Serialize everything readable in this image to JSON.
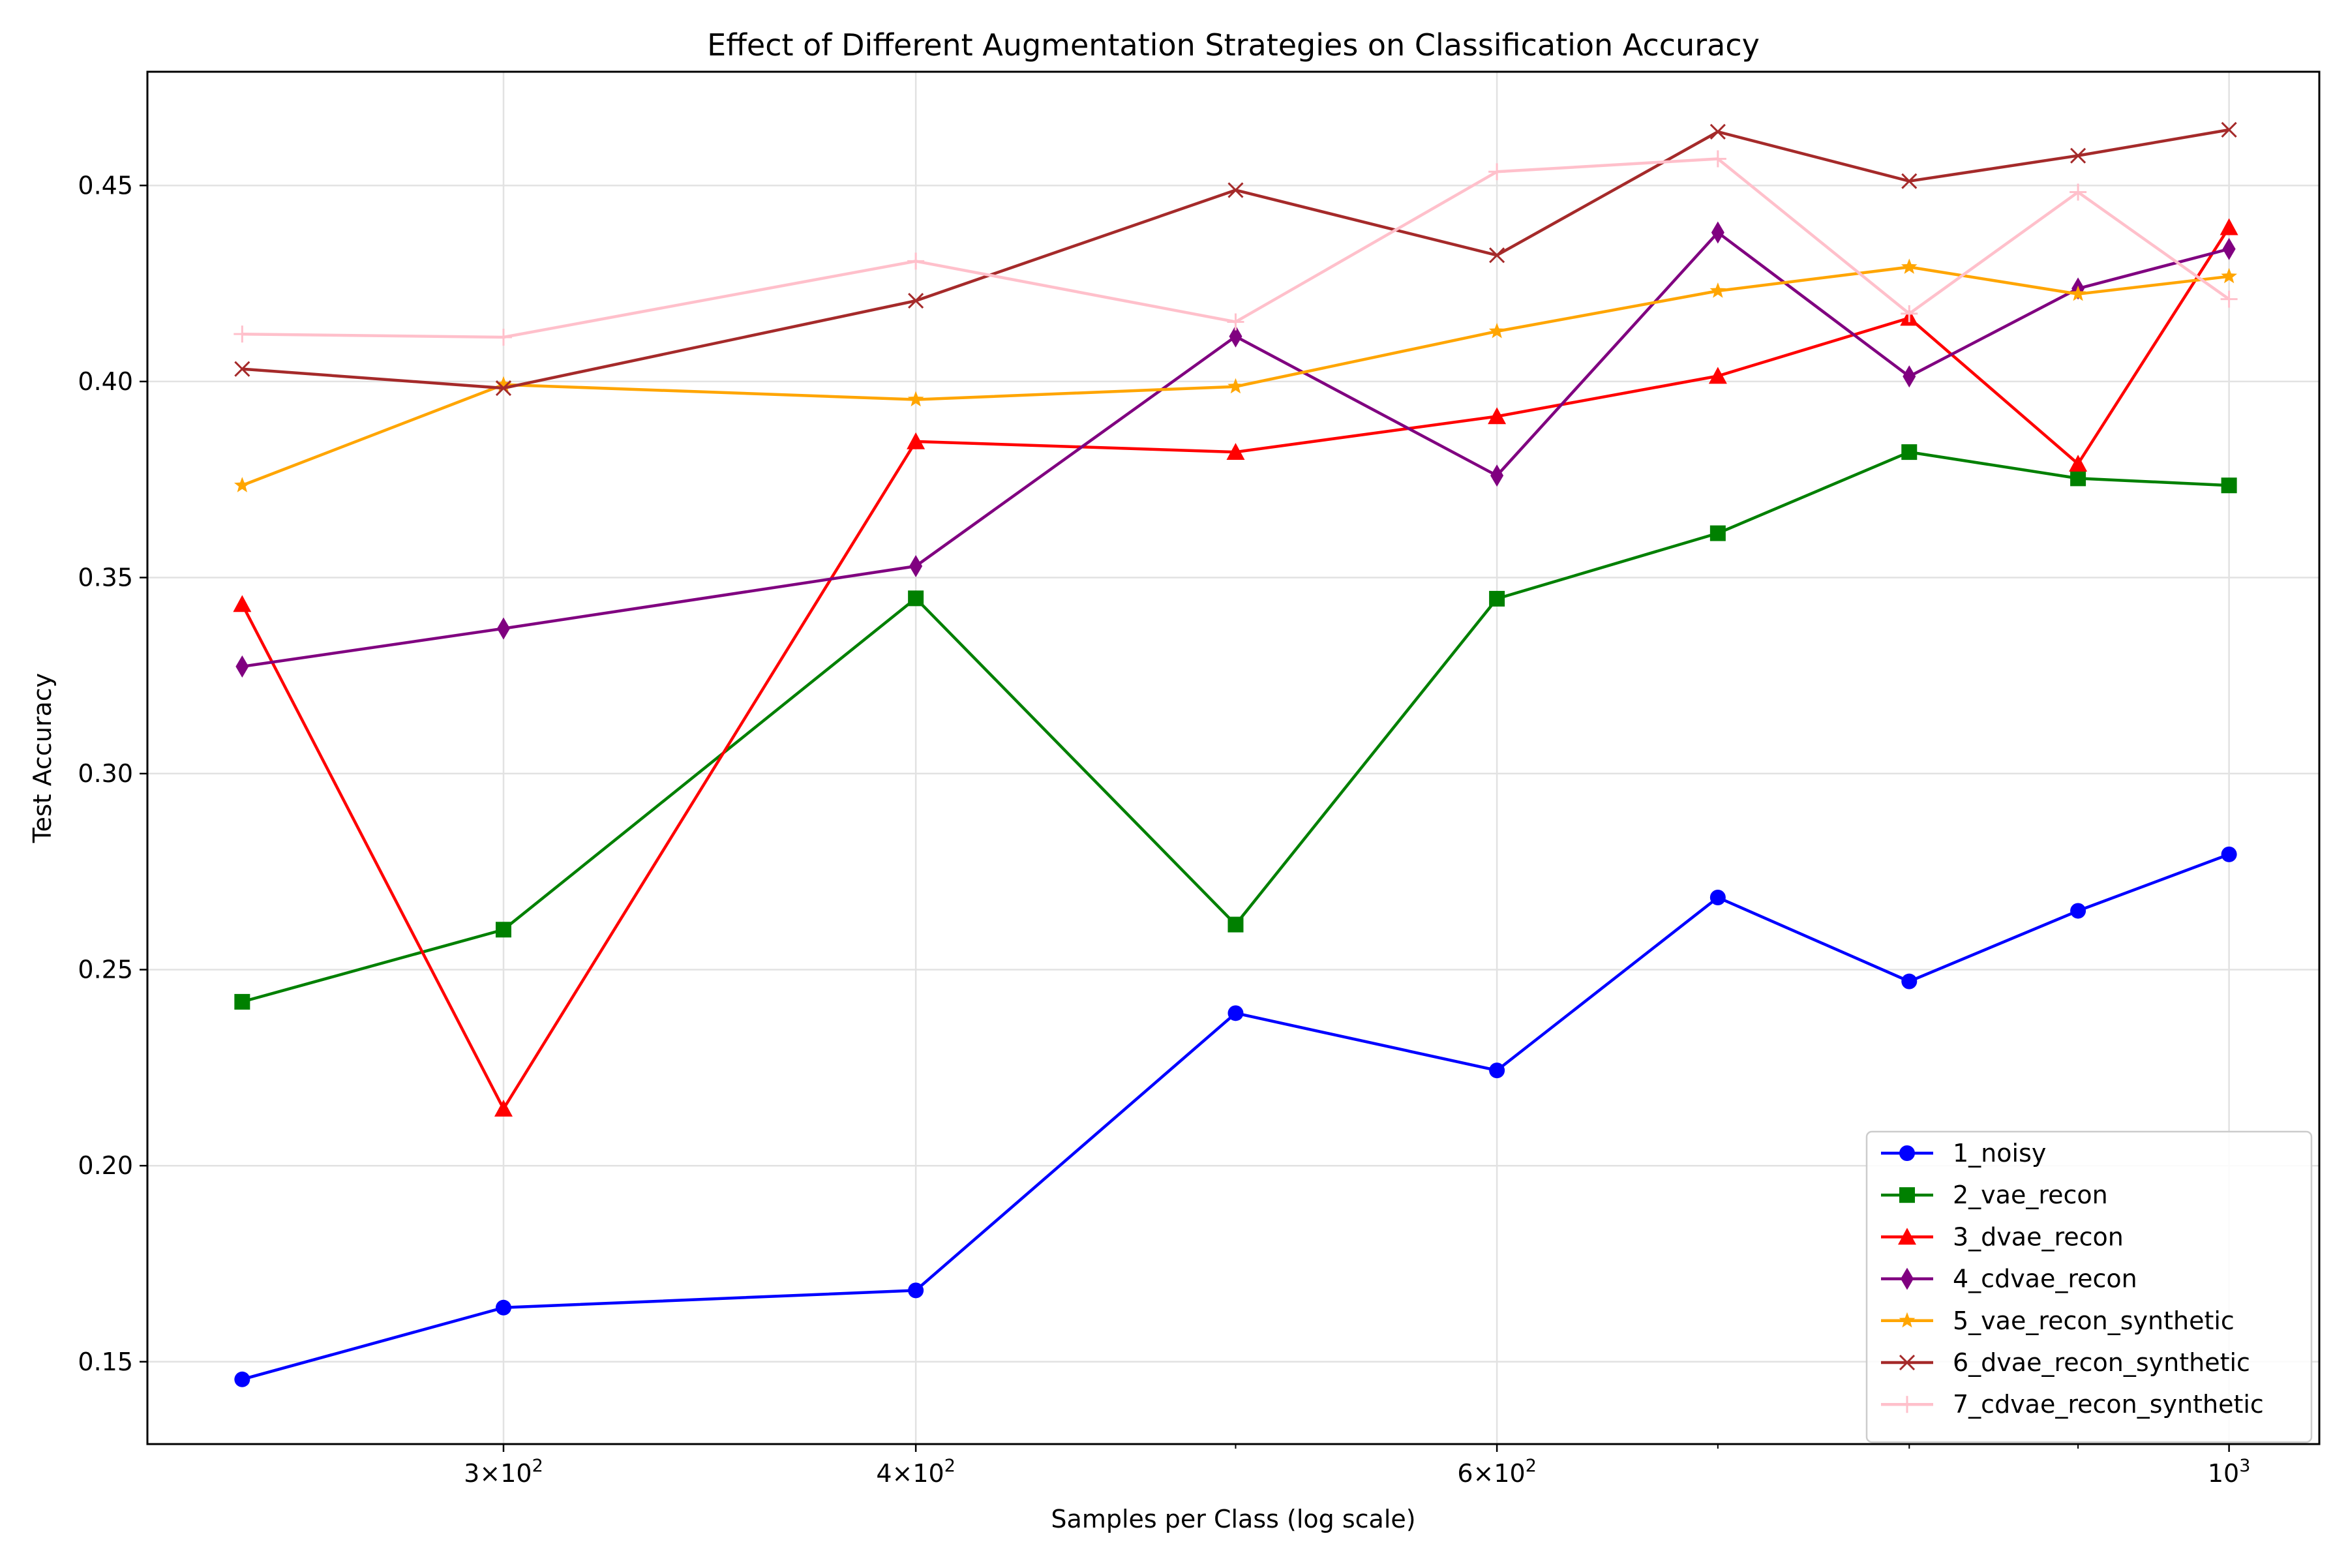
{
  "chart_data": {
    "type": "line",
    "title": "Effect of Different Augmentation Strategies on Classification Accuracy",
    "xlabel": "Samples per Class (log scale)",
    "ylabel": "Test Accuracy",
    "x_scale": "log",
    "xlim": [
      234,
      1065
    ],
    "ylim": [
      0.129,
      0.479
    ],
    "x_ticks": [
      {
        "value": 300,
        "base": "3",
        "exp": "2"
      },
      {
        "value": 400,
        "base": "4",
        "exp": "2"
      },
      {
        "value": 600,
        "base": "6",
        "exp": "2"
      },
      {
        "value": 1000,
        "base": "",
        "exp": "3"
      }
    ],
    "x_ticks_minor": [
      500,
      700,
      800,
      900
    ],
    "y_ticks": [
      0.15,
      0.2,
      0.25,
      0.3,
      0.35,
      0.4,
      0.45
    ],
    "y_tick_labels": [
      "0.15",
      "0.20",
      "0.25",
      "0.30",
      "0.35",
      "0.40",
      "0.45"
    ],
    "grid": true,
    "legend_position": "lower-right",
    "x": [
      250,
      300,
      400,
      500,
      600,
      700,
      800,
      900,
      1000
    ],
    "series": [
      {
        "name": "1_noisy",
        "color": "#0000ff",
        "marker": "circle",
        "values": [
          0.1455,
          0.1638,
          0.1682,
          0.2389,
          0.2243,
          0.2684,
          0.247,
          0.265,
          0.2794
        ]
      },
      {
        "name": "2_vae_recon",
        "color": "#008000",
        "marker": "square",
        "values": [
          0.2418,
          0.2602,
          0.3447,
          0.2615,
          0.3446,
          0.3613,
          0.382,
          0.3753,
          0.3735
        ]
      },
      {
        "name": "3_dvae_recon",
        "color": "#ff0000",
        "marker": "triangle",
        "values": [
          0.3432,
          0.2145,
          0.3847,
          0.382,
          0.3911,
          0.4014,
          0.4162,
          0.379,
          0.4393
        ]
      },
      {
        "name": "4_cdvae_recon",
        "color": "#800080",
        "marker": "thin-diamond",
        "values": [
          0.3273,
          0.337,
          0.3529,
          0.4115,
          0.376,
          0.438,
          0.4013,
          0.4237,
          0.4338
        ]
      },
      {
        "name": "5_vae_recon_synthetic",
        "color": "#ffa500",
        "marker": "star",
        "values": [
          0.3735,
          0.3992,
          0.3954,
          0.3987,
          0.4128,
          0.4231,
          0.4292,
          0.4223,
          0.4268
        ]
      },
      {
        "name": "6_dvae_recon_synthetic",
        "color": "#a52a2a",
        "marker": "x",
        "values": [
          0.4032,
          0.3983,
          0.4206,
          0.4488,
          0.4322,
          0.4637,
          0.4511,
          0.4576,
          0.4642
        ]
      },
      {
        "name": "7_cdvae_recon_synthetic",
        "color": "#ffc0cb",
        "marker": "plus",
        "values": [
          0.4121,
          0.4113,
          0.4307,
          0.4152,
          0.4535,
          0.4568,
          0.4173,
          0.4483,
          0.421
        ]
      }
    ]
  }
}
